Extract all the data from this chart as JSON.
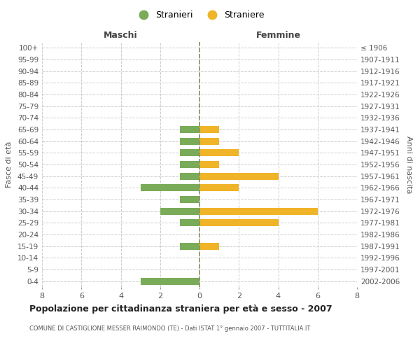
{
  "age_groups": [
    "100+",
    "95-99",
    "90-94",
    "85-89",
    "80-84",
    "75-79",
    "70-74",
    "65-69",
    "60-64",
    "55-59",
    "50-54",
    "45-49",
    "40-44",
    "35-39",
    "30-34",
    "25-29",
    "20-24",
    "15-19",
    "10-14",
    "5-9",
    "0-4"
  ],
  "birth_years": [
    "≤ 1906",
    "1907-1911",
    "1912-1916",
    "1917-1921",
    "1922-1926",
    "1927-1931",
    "1932-1936",
    "1937-1941",
    "1942-1946",
    "1947-1951",
    "1952-1956",
    "1957-1961",
    "1962-1966",
    "1967-1971",
    "1972-1976",
    "1977-1981",
    "1982-1986",
    "1987-1991",
    "1992-1996",
    "1997-2001",
    "2002-2006"
  ],
  "maschi": [
    0,
    0,
    0,
    0,
    0,
    0,
    0,
    1,
    1,
    1,
    1,
    1,
    3,
    1,
    2,
    1,
    0,
    1,
    0,
    0,
    3
  ],
  "femmine": [
    0,
    0,
    0,
    0,
    0,
    0,
    0,
    1,
    1,
    2,
    1,
    4,
    2,
    0,
    6,
    4,
    0,
    1,
    0,
    0,
    0
  ],
  "color_maschi": "#7aab58",
  "color_femmine": "#f0b429",
  "title": "Popolazione per cittadinanza straniera per età e sesso - 2007",
  "subtitle": "COMUNE DI CASTIGLIONE MESSER RAIMONDO (TE) - Dati ISTAT 1° gennaio 2007 - TUTTITALIA.IT",
  "xlabel_left": "Maschi",
  "xlabel_right": "Femmine",
  "ylabel_left": "Fasce di età",
  "ylabel_right": "Anni di nascita",
  "legend_maschi": "Stranieri",
  "legend_femmine": "Straniere",
  "xlim": 8,
  "background_color": "#ffffff",
  "grid_color": "#cccccc",
  "centerline_color": "#8a9060"
}
